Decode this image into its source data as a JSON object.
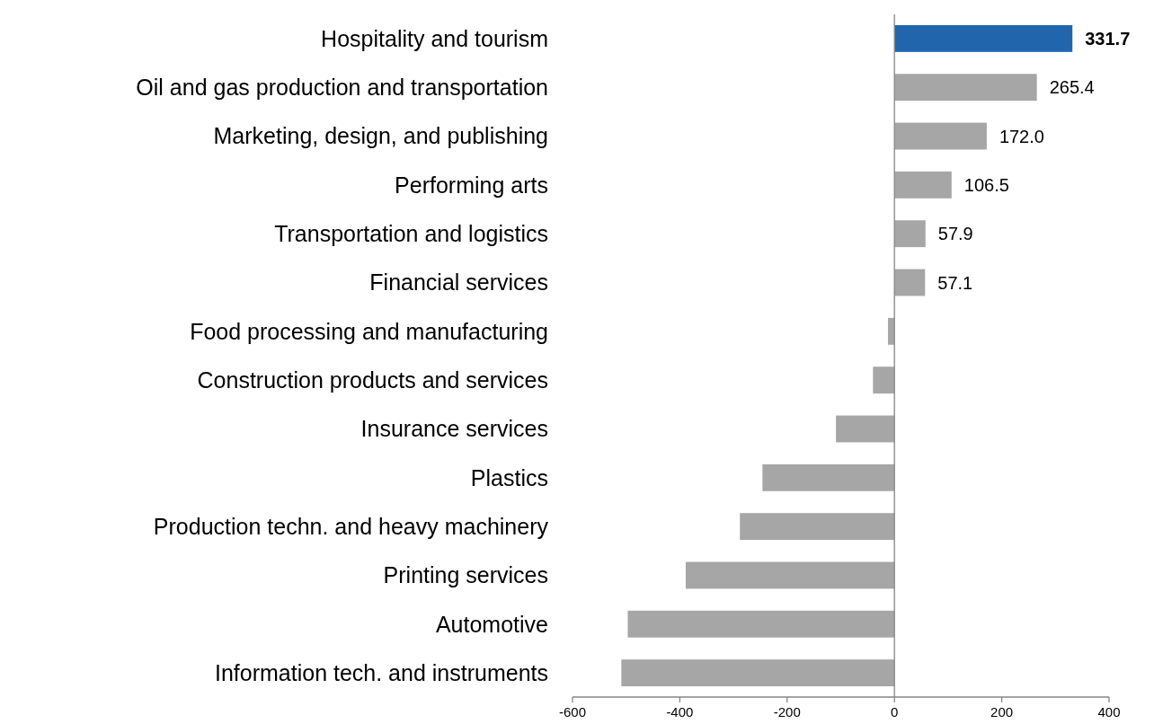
{
  "chart_data": {
    "type": "bar",
    "orientation": "horizontal",
    "categories": [
      "Hospitality and tourism",
      "Oil and gas production and transportation",
      "Marketing, design, and publishing",
      "Performing arts",
      "Transportation and logistics",
      "Financial services",
      "Food processing and manufacturing",
      "Construction products and services",
      "Insurance services",
      "Plastics",
      "Production techn. and heavy machinery",
      "Printing services",
      "Automotive",
      "Information tech. and instruments"
    ],
    "values": [
      331.7,
      265.4,
      172.0,
      106.5,
      57.9,
      57.1,
      -12,
      -40,
      -109,
      -246,
      -288,
      -389,
      -497,
      -509
    ],
    "colors": [
      "#2166ac",
      "#a6a6a6",
      "#a6a6a6",
      "#a6a6a6",
      "#a6a6a6",
      "#a6a6a6",
      "#a6a6a6",
      "#a6a6a6",
      "#a6a6a6",
      "#a6a6a6",
      "#a6a6a6",
      "#a6a6a6",
      "#a6a6a6",
      "#a6a6a6"
    ],
    "value_labels": [
      "331.7",
      "265.4",
      "172.0",
      "106.5",
      "57.9",
      "57.1",
      null,
      null,
      null,
      null,
      null,
      null,
      null,
      null
    ],
    "xlim": [
      -600,
      400
    ],
    "xticks": [
      -600,
      -400,
      -200,
      0,
      200,
      400
    ]
  }
}
